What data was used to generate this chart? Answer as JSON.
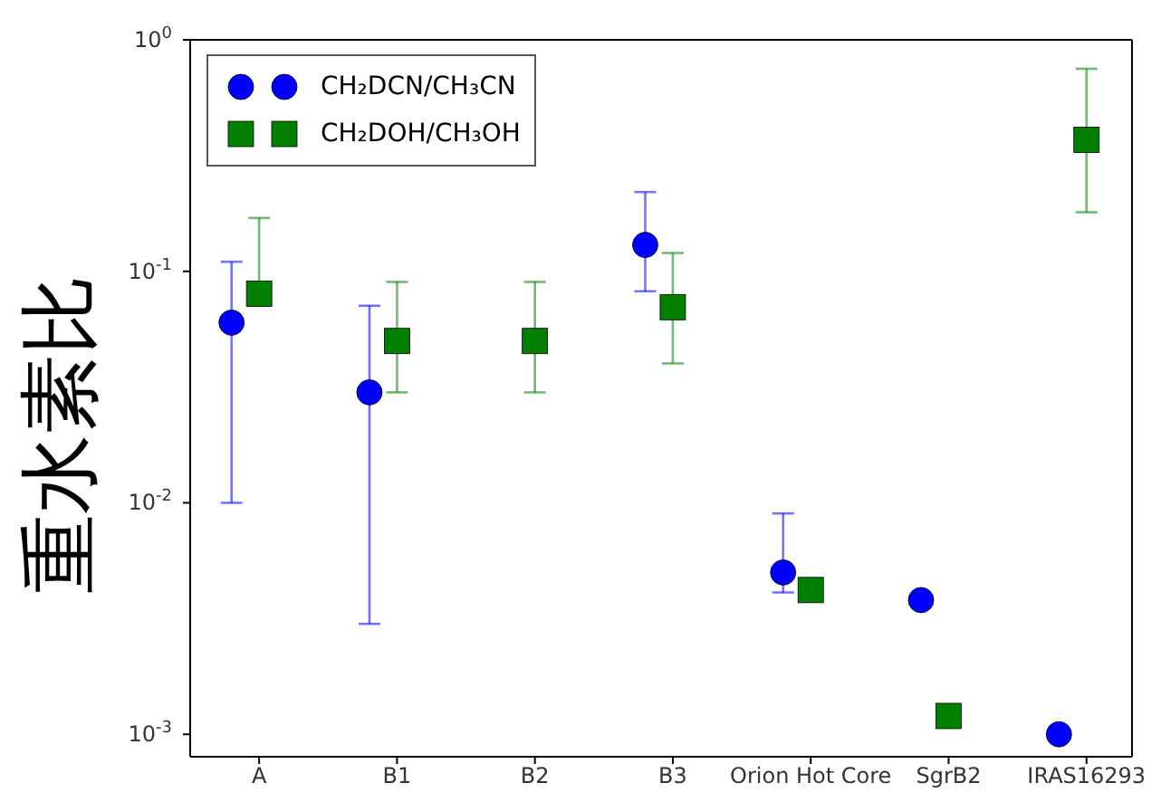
{
  "chart_data": {
    "type": "scatter",
    "ylabel": "重水素比",
    "categories": [
      "A",
      "B1",
      "B2",
      "B3",
      "Orion Hot Core",
      "SgrB2",
      "IRAS16293"
    ],
    "log": "y",
    "ylim": [
      0.0008,
      1
    ],
    "yticks": [
      {
        "value": 0.001,
        "label": "10$^{-3}$"
      },
      {
        "value": 0.01,
        "label": "10$^{-2}$"
      },
      {
        "value": 0.1,
        "label": "10$^{-1}$"
      },
      {
        "value": 1,
        "label": "10$^{0}$"
      }
    ],
    "legend": "top left",
    "series": [
      {
        "name": "CH₂DCN/CH₃CN",
        "color": "#0000ff",
        "marker": "circle",
        "values": [
          0.06,
          0.03,
          null,
          0.13,
          0.005,
          0.0038,
          0.001
        ],
        "errors": [
          [
            0.01,
            0.11
          ],
          [
            0.003,
            0.071
          ],
          null,
          [
            0.082,
            0.22
          ],
          [
            0.0041,
            0.009
          ],
          null,
          null
        ]
      },
      {
        "name": "CH₂DOH/CH₃OH",
        "color": "#007f00",
        "marker": "square",
        "values": [
          0.08,
          0.05,
          0.05,
          0.07,
          0.0042,
          0.0012,
          0.37
        ],
        "errors": [
          [
            0.071,
            0.17
          ],
          [
            0.03,
            0.09
          ],
          [
            0.03,
            0.09
          ],
          [
            0.04,
            0.12
          ],
          null,
          null,
          [
            0.18,
            0.75
          ]
        ]
      }
    ]
  }
}
